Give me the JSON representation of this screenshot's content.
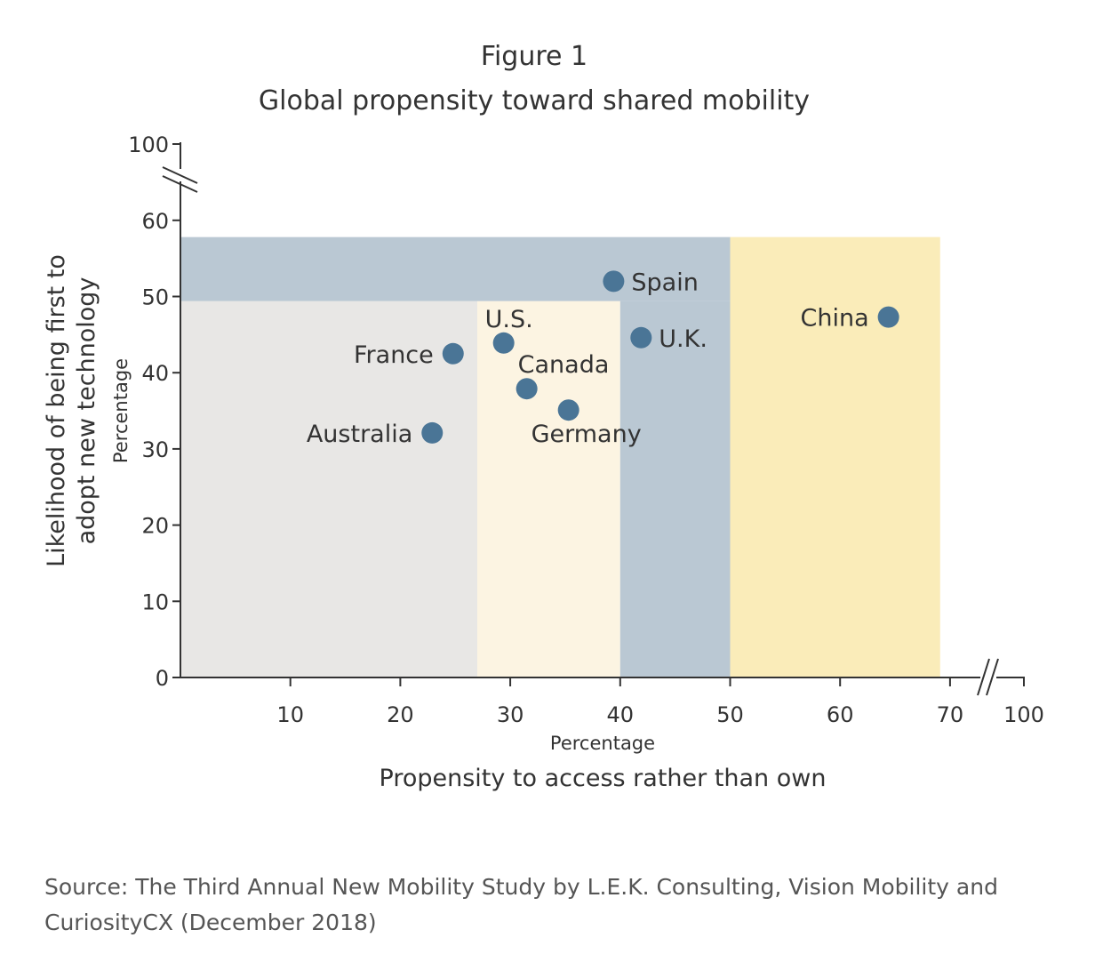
{
  "chart_data": {
    "type": "scatter",
    "figure_label": "Figure 1",
    "title": "Global propensity toward shared mobility",
    "xlabel": "Propensity to access rather than own",
    "xunit": "Percentage",
    "ylabel": "Likelihood of being first to adopt new technology",
    "yunit": "Percentage",
    "x_ticks": [
      10,
      20,
      30,
      40,
      50,
      60,
      70,
      100
    ],
    "y_ticks": [
      0,
      10,
      20,
      30,
      40,
      50,
      60,
      100
    ],
    "xlim": [
      0,
      100
    ],
    "ylim": [
      0,
      100
    ],
    "x_axis_break": [
      70,
      100
    ],
    "y_axis_break": [
      60,
      100
    ],
    "grid": false,
    "points": [
      {
        "label": "Spain",
        "x": 39.4,
        "y": 52.0,
        "label_pos": "right"
      },
      {
        "label": "China",
        "x": 64.4,
        "y": 47.3,
        "label_pos": "left"
      },
      {
        "label": "U.K.",
        "x": 41.9,
        "y": 44.6,
        "label_pos": "right"
      },
      {
        "label": "U.S.",
        "x": 29.4,
        "y": 43.9,
        "label_pos": "top"
      },
      {
        "label": "France",
        "x": 24.8,
        "y": 42.5,
        "label_pos": "left"
      },
      {
        "label": "Canada",
        "x": 31.5,
        "y": 37.9,
        "label_pos": "top-right"
      },
      {
        "label": "Germany",
        "x": 35.3,
        "y": 35.1,
        "label_pos": "bottom"
      },
      {
        "label": "Australia",
        "x": 22.9,
        "y": 32.1,
        "label_pos": "left"
      }
    ],
    "regions": [
      {
        "x": [
          0,
          27
        ],
        "y": [
          0,
          49.4
        ],
        "color": "#e8e7e5"
      },
      {
        "x": [
          27,
          40
        ],
        "y": [
          0,
          49.4
        ],
        "color": "#fcf4e2"
      },
      {
        "x": [
          40,
          50
        ],
        "y": [
          0,
          49.4
        ],
        "color": "#bac8d3"
      },
      {
        "x": [
          0,
          50
        ],
        "y": [
          49.4,
          57.8
        ],
        "color": "#bac8d3"
      },
      {
        "x": [
          50,
          69.1
        ],
        "y": [
          0,
          57.8
        ],
        "color": "#faecb9"
      }
    ],
    "point_color": "#4a7596"
  },
  "source": "Source: The Third Annual New Mobility Study by L.E.K. Consulting, Vision Mobility and CuriosityCX (December 2018)"
}
